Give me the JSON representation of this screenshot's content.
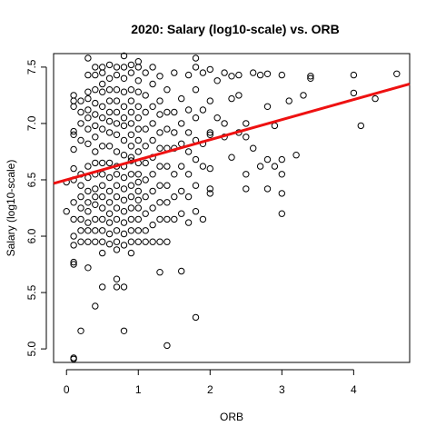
{
  "chart_data": {
    "type": "scatter",
    "title": "2020: Salary (log10-scale) vs. ORB",
    "xlabel": "ORB",
    "ylabel": "Salary (log10-scale)",
    "xlim": [
      -0.18,
      4.78
    ],
    "ylim": [
      4.88,
      7.62
    ],
    "xticks": [
      0,
      1,
      2,
      3,
      4
    ],
    "yticks": [
      5.0,
      5.5,
      6.0,
      6.5,
      7.0,
      7.5
    ],
    "grid": false,
    "legend": "none",
    "point_color": "#000000",
    "regression_line": {
      "intercept": 6.5,
      "slope": 0.178,
      "color": "#ee1111"
    },
    "points": [
      [
        0.1,
        4.91
      ],
      [
        0.1,
        4.92
      ],
      [
        0.1,
        5.75
      ],
      [
        0.1,
        5.77
      ],
      [
        0.2,
        5.16
      ],
      [
        0.3,
        5.72
      ],
      [
        0.4,
        5.38
      ],
      [
        0.5,
        5.55
      ],
      [
        0.7,
        5.55
      ],
      [
        0.7,
        5.62
      ],
      [
        0.8,
        5.16
      ],
      [
        0.8,
        5.55
      ],
      [
        1.3,
        5.68
      ],
      [
        1.4,
        5.03
      ],
      [
        1.6,
        5.69
      ],
      [
        1.8,
        5.28
      ],
      [
        0.0,
        6.22
      ],
      [
        0.0,
        6.48
      ],
      [
        0.1,
        5.92
      ],
      [
        0.1,
        6.0
      ],
      [
        0.1,
        6.15
      ],
      [
        0.1,
        6.3
      ],
      [
        0.1,
        6.5
      ],
      [
        0.1,
        6.6
      ],
      [
        0.1,
        6.77
      ],
      [
        0.1,
        6.9
      ],
      [
        0.1,
        6.93
      ],
      [
        0.1,
        7.15
      ],
      [
        0.1,
        7.2
      ],
      [
        0.1,
        7.25
      ],
      [
        0.2,
        5.95
      ],
      [
        0.2,
        6.05
      ],
      [
        0.2,
        6.15
      ],
      [
        0.2,
        6.25
      ],
      [
        0.2,
        6.35
      ],
      [
        0.2,
        6.45
      ],
      [
        0.2,
        6.55
      ],
      [
        0.2,
        6.85
      ],
      [
        0.2,
        7.0
      ],
      [
        0.2,
        7.1
      ],
      [
        0.2,
        7.2
      ],
      [
        0.3,
        5.95
      ],
      [
        0.3,
        6.05
      ],
      [
        0.3,
        6.12
      ],
      [
        0.3,
        6.22
      ],
      [
        0.3,
        6.3
      ],
      [
        0.3,
        6.4
      ],
      [
        0.3,
        6.52
      ],
      [
        0.3,
        6.62
      ],
      [
        0.3,
        6.82
      ],
      [
        0.3,
        6.95
      ],
      [
        0.3,
        7.05
      ],
      [
        0.3,
        7.12
      ],
      [
        0.3,
        7.22
      ],
      [
        0.3,
        7.28
      ],
      [
        0.3,
        7.43
      ],
      [
        0.3,
        7.58
      ],
      [
        0.4,
        5.95
      ],
      [
        0.4,
        6.05
      ],
      [
        0.4,
        6.15
      ],
      [
        0.4,
        6.28
      ],
      [
        0.4,
        6.35
      ],
      [
        0.4,
        6.42
      ],
      [
        0.4,
        6.55
      ],
      [
        0.4,
        6.65
      ],
      [
        0.4,
        6.75
      ],
      [
        0.4,
        6.88
      ],
      [
        0.4,
        6.98
      ],
      [
        0.4,
        7.08
      ],
      [
        0.4,
        7.18
      ],
      [
        0.4,
        7.3
      ],
      [
        0.4,
        7.43
      ],
      [
        0.4,
        7.5
      ],
      [
        0.5,
        5.85
      ],
      [
        0.5,
        5.95
      ],
      [
        0.5,
        6.05
      ],
      [
        0.5,
        6.15
      ],
      [
        0.5,
        6.25
      ],
      [
        0.5,
        6.35
      ],
      [
        0.5,
        6.45
      ],
      [
        0.5,
        6.55
      ],
      [
        0.5,
        6.65
      ],
      [
        0.5,
        6.8
      ],
      [
        0.5,
        6.95
      ],
      [
        0.5,
        7.05
      ],
      [
        0.5,
        7.15
      ],
      [
        0.5,
        7.28
      ],
      [
        0.5,
        7.35
      ],
      [
        0.5,
        7.45
      ],
      [
        0.5,
        7.5
      ],
      [
        0.6,
        5.93
      ],
      [
        0.6,
        6.02
      ],
      [
        0.6,
        6.12
      ],
      [
        0.6,
        6.2
      ],
      [
        0.6,
        6.3
      ],
      [
        0.6,
        6.4
      ],
      [
        0.6,
        6.52
      ],
      [
        0.6,
        6.65
      ],
      [
        0.6,
        6.8
      ],
      [
        0.6,
        6.92
      ],
      [
        0.6,
        7.02
      ],
      [
        0.6,
        7.1
      ],
      [
        0.6,
        7.2
      ],
      [
        0.6,
        7.3
      ],
      [
        0.6,
        7.4
      ],
      [
        0.6,
        7.52
      ],
      [
        0.7,
        5.88
      ],
      [
        0.7,
        5.95
      ],
      [
        0.7,
        6.05
      ],
      [
        0.7,
        6.15
      ],
      [
        0.7,
        6.25
      ],
      [
        0.7,
        6.35
      ],
      [
        0.7,
        6.45
      ],
      [
        0.7,
        6.55
      ],
      [
        0.7,
        6.62
      ],
      [
        0.7,
        6.75
      ],
      [
        0.7,
        6.9
      ],
      [
        0.7,
        7.0
      ],
      [
        0.7,
        7.1
      ],
      [
        0.7,
        7.2
      ],
      [
        0.7,
        7.3
      ],
      [
        0.7,
        7.43
      ],
      [
        0.7,
        7.5
      ],
      [
        0.8,
        5.92
      ],
      [
        0.8,
        6.02
      ],
      [
        0.8,
        6.12
      ],
      [
        0.8,
        6.22
      ],
      [
        0.8,
        6.32
      ],
      [
        0.8,
        6.42
      ],
      [
        0.8,
        6.52
      ],
      [
        0.8,
        6.62
      ],
      [
        0.8,
        6.72
      ],
      [
        0.8,
        6.85
      ],
      [
        0.8,
        6.98
      ],
      [
        0.8,
        7.05
      ],
      [
        0.8,
        7.15
      ],
      [
        0.8,
        7.28
      ],
      [
        0.8,
        7.4
      ],
      [
        0.8,
        7.5
      ],
      [
        0.8,
        7.6
      ],
      [
        0.9,
        5.85
      ],
      [
        0.9,
        5.95
      ],
      [
        0.9,
        6.05
      ],
      [
        0.9,
        6.15
      ],
      [
        0.9,
        6.25
      ],
      [
        0.9,
        6.35
      ],
      [
        0.9,
        6.45
      ],
      [
        0.9,
        6.55
      ],
      [
        0.9,
        6.67
      ],
      [
        0.9,
        6.7
      ],
      [
        0.9,
        6.8
      ],
      [
        0.9,
        6.9
      ],
      [
        0.9,
        7.0
      ],
      [
        0.9,
        7.1
      ],
      [
        0.9,
        7.2
      ],
      [
        0.9,
        7.3
      ],
      [
        0.9,
        7.45
      ],
      [
        0.9,
        7.52
      ],
      [
        1.0,
        5.95
      ],
      [
        1.0,
        6.05
      ],
      [
        1.0,
        6.15
      ],
      [
        1.0,
        6.25
      ],
      [
        1.0,
        6.32
      ],
      [
        1.0,
        6.4
      ],
      [
        1.0,
        6.48
      ],
      [
        1.0,
        6.55
      ],
      [
        1.0,
        6.65
      ],
      [
        1.0,
        6.75
      ],
      [
        1.0,
        6.85
      ],
      [
        1.0,
        6.95
      ],
      [
        1.0,
        7.05
      ],
      [
        1.0,
        7.15
      ],
      [
        1.0,
        7.28
      ],
      [
        1.0,
        7.38
      ],
      [
        1.0,
        7.5
      ],
      [
        1.0,
        7.55
      ],
      [
        1.1,
        5.95
      ],
      [
        1.1,
        6.05
      ],
      [
        1.1,
        6.2
      ],
      [
        1.1,
        6.35
      ],
      [
        1.1,
        6.5
      ],
      [
        1.1,
        6.65
      ],
      [
        1.1,
        6.8
      ],
      [
        1.1,
        6.95
      ],
      [
        1.1,
        7.1
      ],
      [
        1.1,
        7.25
      ],
      [
        1.1,
        7.45
      ],
      [
        1.2,
        5.95
      ],
      [
        1.2,
        6.1
      ],
      [
        1.2,
        6.25
      ],
      [
        1.2,
        6.4
      ],
      [
        1.2,
        6.55
      ],
      [
        1.2,
        6.7
      ],
      [
        1.2,
        6.85
      ],
      [
        1.2,
        7.0
      ],
      [
        1.2,
        7.15
      ],
      [
        1.2,
        7.35
      ],
      [
        1.2,
        7.5
      ],
      [
        1.3,
        5.95
      ],
      [
        1.3,
        6.15
      ],
      [
        1.3,
        6.3
      ],
      [
        1.3,
        6.45
      ],
      [
        1.3,
        6.62
      ],
      [
        1.3,
        6.78
      ],
      [
        1.3,
        6.92
      ],
      [
        1.3,
        7.08
      ],
      [
        1.3,
        7.2
      ],
      [
        1.3,
        7.42
      ],
      [
        1.4,
        5.95
      ],
      [
        1.4,
        6.15
      ],
      [
        1.4,
        6.3
      ],
      [
        1.4,
        6.45
      ],
      [
        1.4,
        6.62
      ],
      [
        1.4,
        6.78
      ],
      [
        1.4,
        6.95
      ],
      [
        1.4,
        7.1
      ],
      [
        1.4,
        7.3
      ],
      [
        1.5,
        6.15
      ],
      [
        1.5,
        6.35
      ],
      [
        1.5,
        6.55
      ],
      [
        1.5,
        6.78
      ],
      [
        1.5,
        6.92
      ],
      [
        1.5,
        7.1
      ],
      [
        1.5,
        7.45
      ],
      [
        1.6,
        6.2
      ],
      [
        1.6,
        6.4
      ],
      [
        1.6,
        6.62
      ],
      [
        1.6,
        6.82
      ],
      [
        1.6,
        7.0
      ],
      [
        1.6,
        7.22
      ],
      [
        1.7,
        6.12
      ],
      [
        1.7,
        6.35
      ],
      [
        1.7,
        6.55
      ],
      [
        1.7,
        6.75
      ],
      [
        1.7,
        6.92
      ],
      [
        1.7,
        7.12
      ],
      [
        1.7,
        7.43
      ],
      [
        1.8,
        6.22
      ],
      [
        1.8,
        6.45
      ],
      [
        1.8,
        6.68
      ],
      [
        1.8,
        6.85
      ],
      [
        1.8,
        7.05
      ],
      [
        1.8,
        7.3
      ],
      [
        1.8,
        7.5
      ],
      [
        1.8,
        7.58
      ],
      [
        1.9,
        6.15
      ],
      [
        1.9,
        6.62
      ],
      [
        1.9,
        6.82
      ],
      [
        1.9,
        7.12
      ],
      [
        1.9,
        7.45
      ],
      [
        2.0,
        6.38
      ],
      [
        2.0,
        6.42
      ],
      [
        2.0,
        6.6
      ],
      [
        2.0,
        6.9
      ],
      [
        2.0,
        6.92
      ],
      [
        2.0,
        7.2
      ],
      [
        2.0,
        7.48
      ],
      [
        2.1,
        7.05
      ],
      [
        2.1,
        7.38
      ],
      [
        2.2,
        6.88
      ],
      [
        2.2,
        7.0
      ],
      [
        2.2,
        7.45
      ],
      [
        2.3,
        6.7
      ],
      [
        2.3,
        7.22
      ],
      [
        2.3,
        7.42
      ],
      [
        2.4,
        6.92
      ],
      [
        2.4,
        7.25
      ],
      [
        2.4,
        7.43
      ],
      [
        2.5,
        6.42
      ],
      [
        2.5,
        6.55
      ],
      [
        2.5,
        6.88
      ],
      [
        2.5,
        7.0
      ],
      [
        2.6,
        6.78
      ],
      [
        2.6,
        7.45
      ],
      [
        2.7,
        6.62
      ],
      [
        2.7,
        7.43
      ],
      [
        2.8,
        6.42
      ],
      [
        2.8,
        6.68
      ],
      [
        2.8,
        7.15
      ],
      [
        2.8,
        7.44
      ],
      [
        2.9,
        6.62
      ],
      [
        2.9,
        6.98
      ],
      [
        3.0,
        6.2
      ],
      [
        3.0,
        6.38
      ],
      [
        3.0,
        6.55
      ],
      [
        3.0,
        6.68
      ],
      [
        3.0,
        7.43
      ],
      [
        3.1,
        7.2
      ],
      [
        3.2,
        6.72
      ],
      [
        3.3,
        7.25
      ],
      [
        3.4,
        7.4
      ],
      [
        3.4,
        7.42
      ],
      [
        4.0,
        7.27
      ],
      [
        4.0,
        7.43
      ],
      [
        4.1,
        6.98
      ],
      [
        4.3,
        7.22
      ],
      [
        4.6,
        7.44
      ]
    ]
  }
}
